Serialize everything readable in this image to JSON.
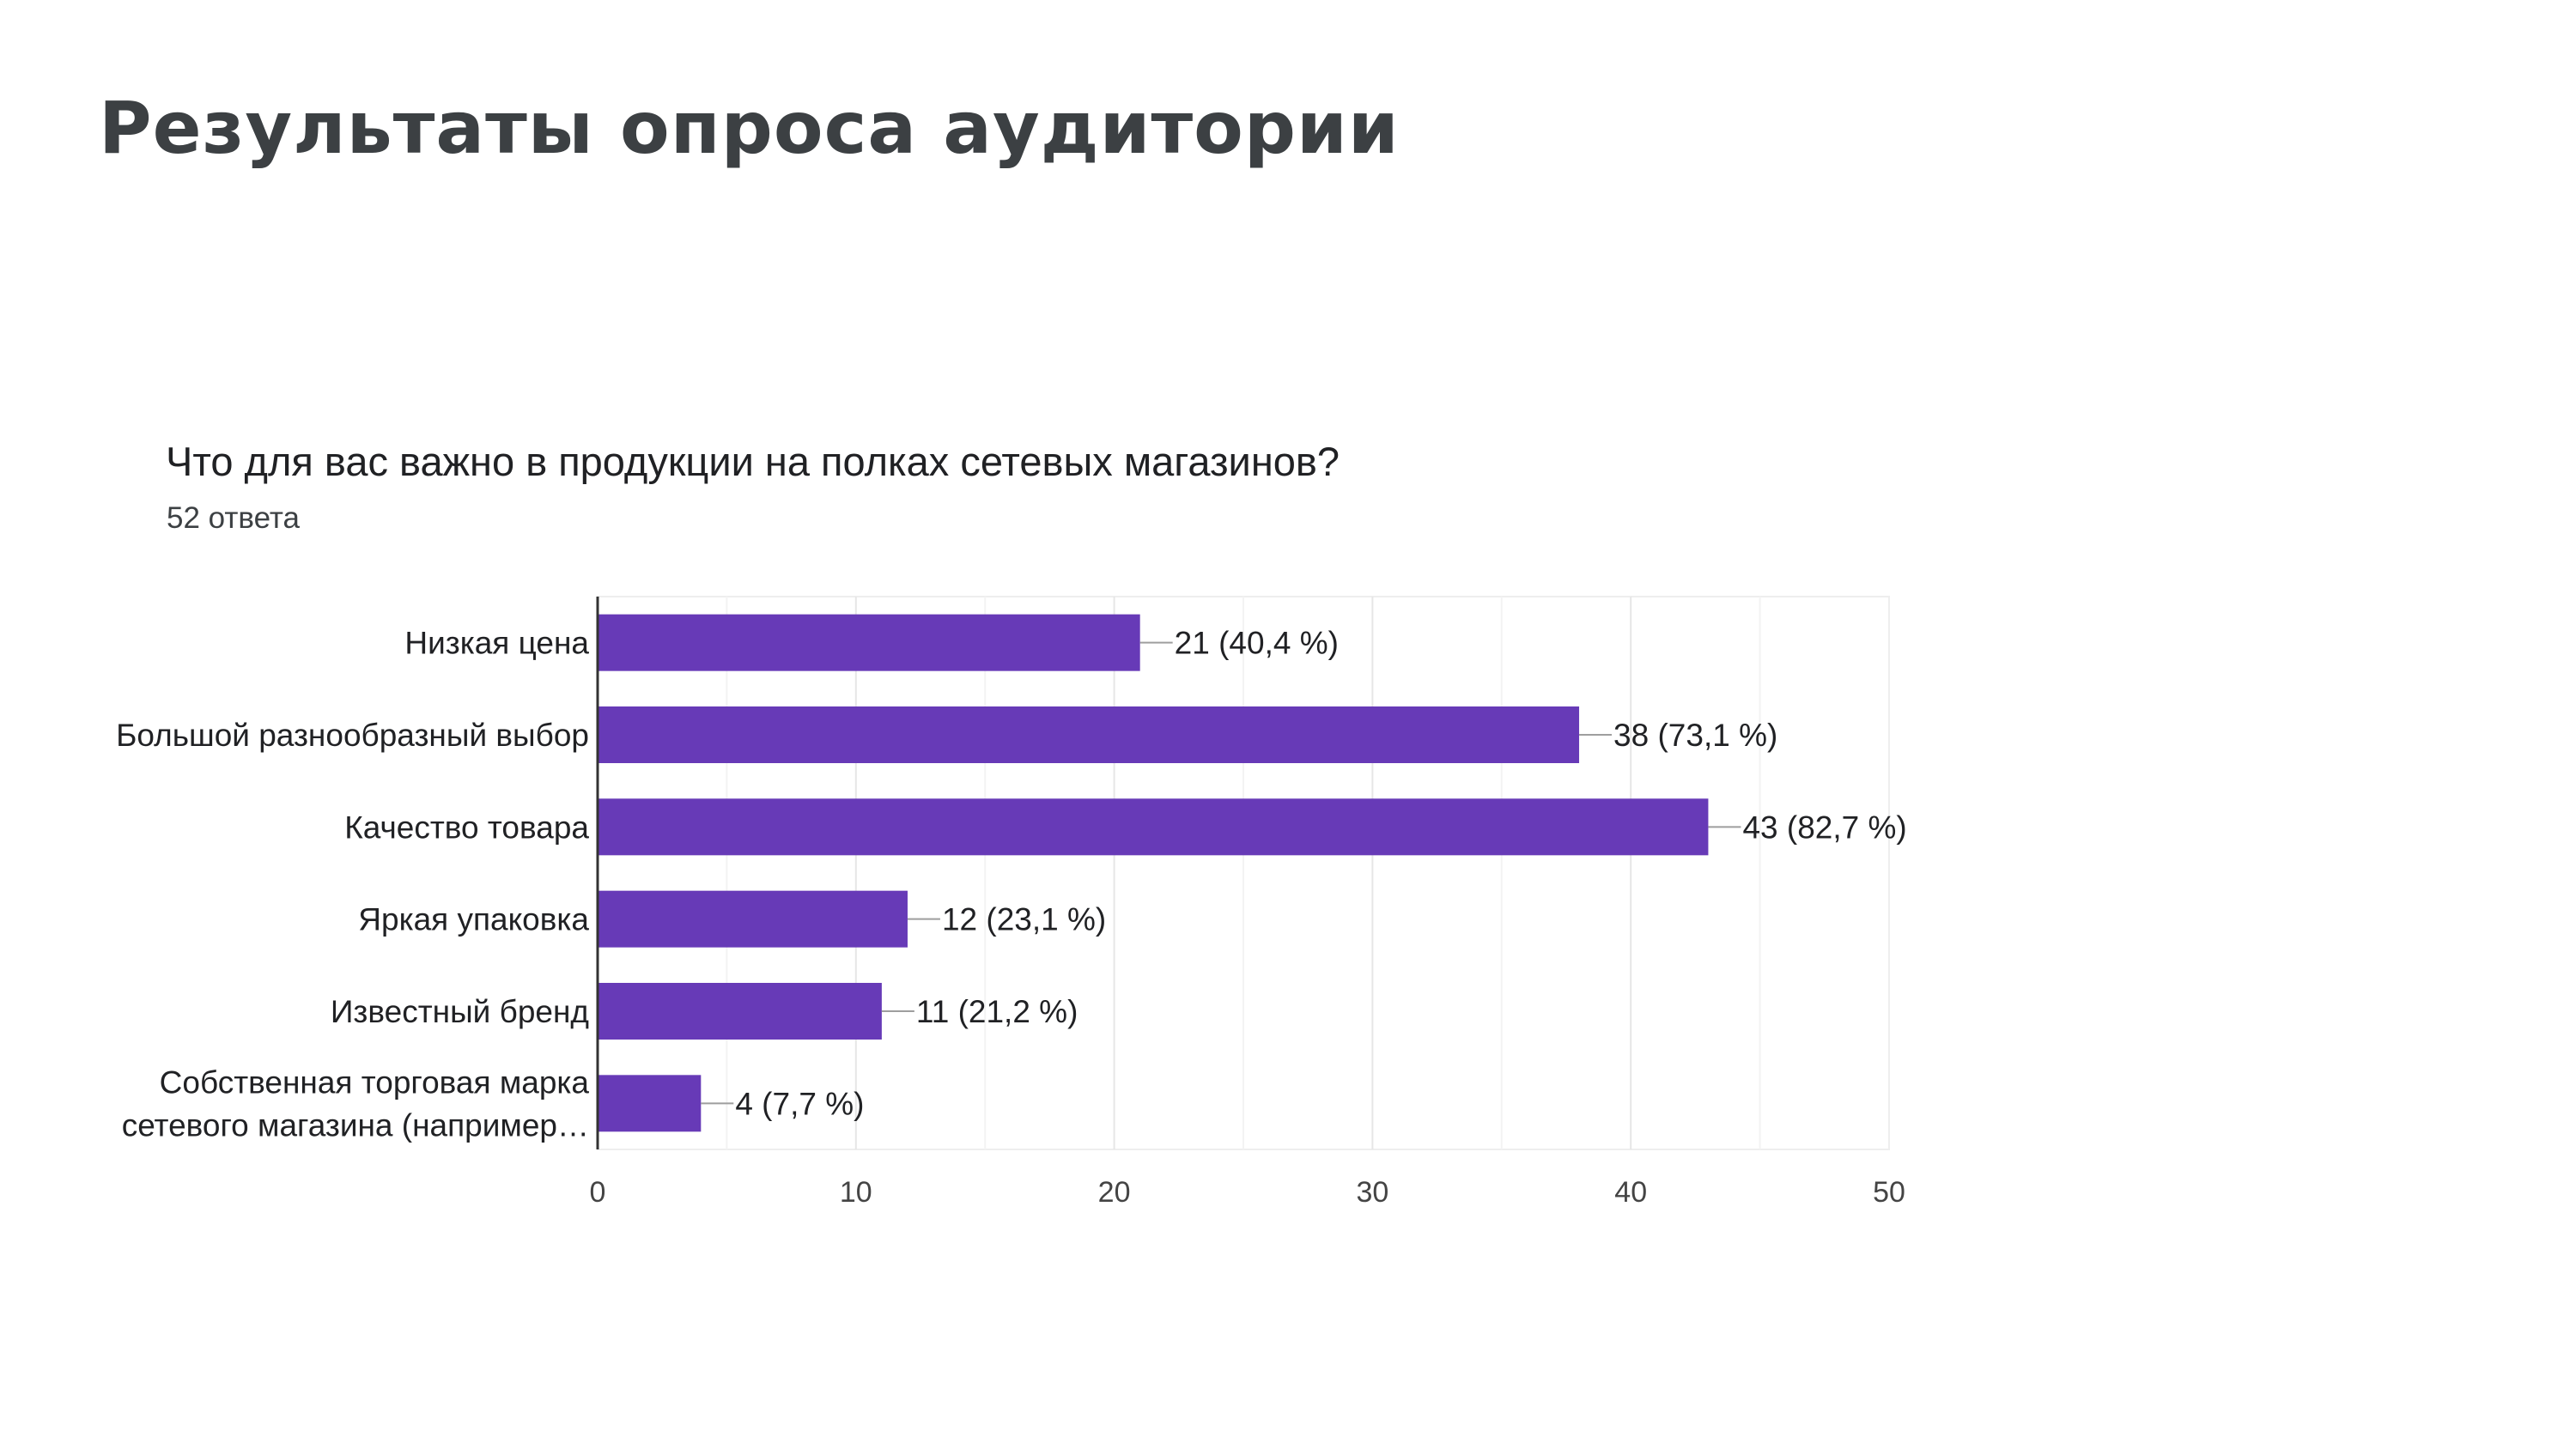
{
  "slide": {
    "title": "Результаты опроса аудитории"
  },
  "chart_header": {
    "question": "Что для вас важно в продукции на полках сетевых магазинов?",
    "responses": "52 ответа"
  },
  "colors": {
    "bar": "#673ab7",
    "title_text": "#3c4043",
    "label_text": "#202124",
    "grid": "#eeeeee",
    "axis": "#333333",
    "leader": "#9e9e9e"
  },
  "chart_data": {
    "type": "bar",
    "orientation": "horizontal",
    "title": "Что для вас важно в продукции на полках сетевых магазинов?",
    "subtitle": "52 ответа",
    "categories": [
      "Низкая цена",
      "Большой разнообразный выбор",
      "Качество товара",
      "Яркая упаковка",
      "Известный бренд",
      "Собственная торговая марка сетевого магазина (например…"
    ],
    "category_label_lines": [
      [
        "Низкая цена"
      ],
      [
        "Большой разнообразный выбор"
      ],
      [
        "Качество товара"
      ],
      [
        "Яркая упаковка"
      ],
      [
        "Известный бренд"
      ],
      [
        "Собственная торговая марка",
        "сетевого магазина (например…"
      ]
    ],
    "values": [
      21,
      38,
      43,
      12,
      11,
      4
    ],
    "data_labels": [
      "21 (40,4 %)",
      "38 (73,1 %)",
      "43 (82,7 %)",
      "12 (23,1 %)",
      "11 (21,2 %)",
      "4 (7,7 %)"
    ],
    "xlim": [
      0,
      50
    ],
    "x_ticks": [
      0,
      10,
      20,
      30,
      40,
      50
    ],
    "x_tick_labels": [
      "0",
      "10",
      "20",
      "30",
      "40",
      "50"
    ],
    "minor_grid_step": 5,
    "grid": true,
    "legend": "none",
    "xlabel": "",
    "ylabel": ""
  }
}
